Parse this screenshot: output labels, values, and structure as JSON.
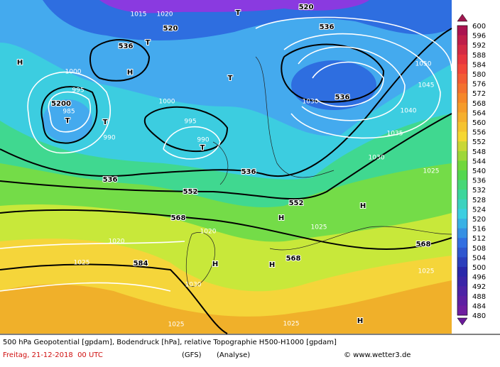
{
  "map_labels": [
    "1015",
    "1020",
    "520",
    "536",
    "T",
    "T",
    "H",
    "1000",
    "995",
    "5200",
    "985",
    "T",
    "T",
    "990",
    "1000",
    "995",
    "990",
    "T",
    "T",
    "536",
    "536",
    "552",
    "552",
    "568",
    "568",
    "568",
    "584",
    "H",
    "H",
    "H",
    "H",
    "H",
    "520",
    "536",
    "536",
    "1030",
    "1035",
    "1040",
    "1045",
    "1050",
    "1030",
    "1025",
    "1025",
    "1020",
    "1025",
    "1020",
    "1030",
    "1025",
    "1025",
    "1025",
    "H"
  ],
  "colorbar_labels": [
    "600",
    "596",
    "592",
    "588",
    "584",
    "580",
    "576",
    "572",
    "568",
    "564",
    "560",
    "556",
    "552",
    "548",
    "544",
    "540",
    "536",
    "532",
    "528",
    "524",
    "520",
    "516",
    "512",
    "508",
    "504",
    "500",
    "496",
    "492",
    "488",
    "484",
    "480"
  ],
  "footer": {
    "line1": "500 hPa Geopotential [gpdam], Bodendruck [hPa], relative Topographie H500-H1000 [gpdam]",
    "date": "Freitag, 21-12-2018  00 UTC",
    "model": "(GFS)",
    "run": "(Analyse)",
    "copyright": "© www.wetter3.de"
  }
}
